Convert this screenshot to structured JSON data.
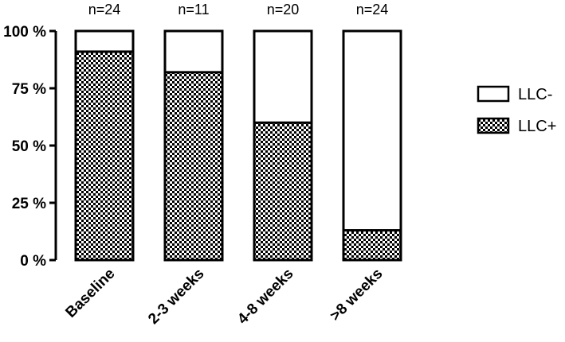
{
  "chart_data": {
    "type": "bar",
    "stacked": true,
    "percent": true,
    "categories": [
      "Baseline",
      "2-3 weeks",
      "4-8 weeks",
      ">8 weeks"
    ],
    "n_labels": [
      "n=24",
      "n=11",
      "n=20",
      "n=24"
    ],
    "series": [
      {
        "name": "LLC+",
        "values": [
          91,
          82,
          60,
          13
        ],
        "pattern": "checkerboard"
      },
      {
        "name": "LLC-",
        "values": [
          9,
          18,
          40,
          87
        ],
        "pattern": "white"
      }
    ],
    "ylim": [
      0,
      100
    ],
    "yticks": [
      {
        "value": 0,
        "label": "0 %"
      },
      {
        "value": 25,
        "label": "25 %"
      },
      {
        "value": 50,
        "label": "50 %"
      },
      {
        "value": 75,
        "label": "75 %"
      },
      {
        "value": 100,
        "label": "100 %"
      }
    ],
    "legend": {
      "placement": "right",
      "items": [
        {
          "label": "LLC-",
          "pattern": "white"
        },
        {
          "label": "LLC+",
          "pattern": "checkerboard"
        }
      ]
    },
    "grid": false,
    "colors": {
      "ink": "#000000",
      "fill": "#ffffff"
    }
  }
}
